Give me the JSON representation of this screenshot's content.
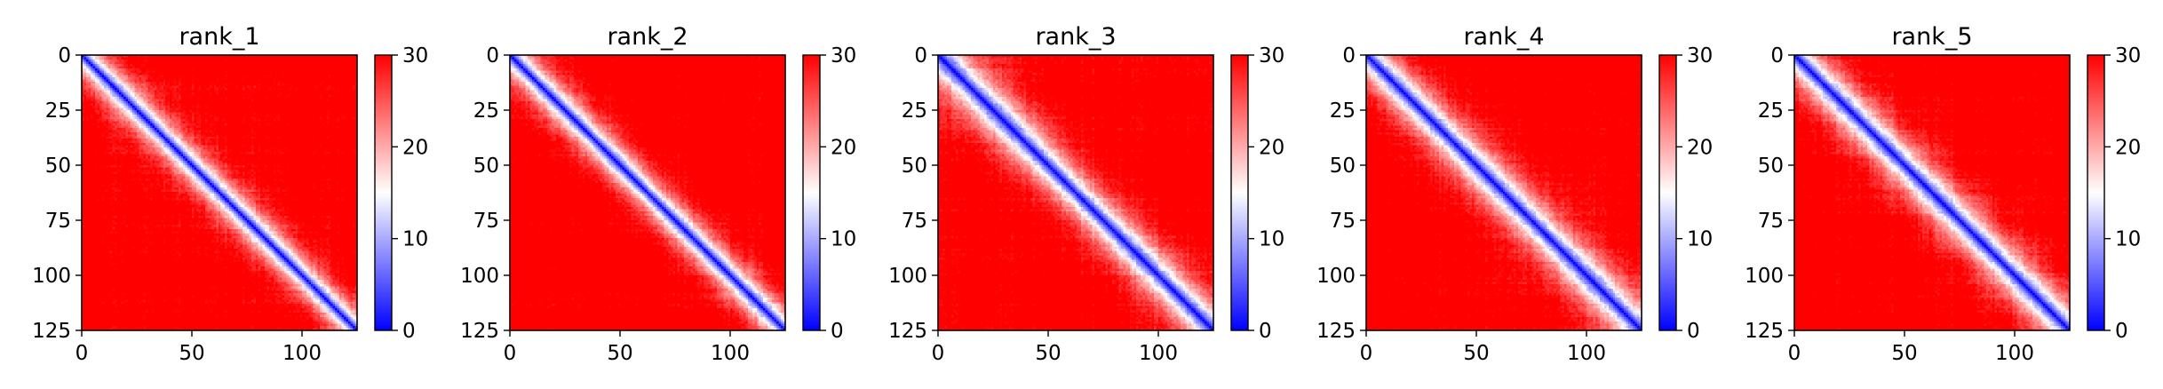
{
  "chart_data": [
    {
      "type": "heatmap",
      "title": "rank_1",
      "n": 125,
      "x_ticks": [
        0,
        50,
        100
      ],
      "y_ticks": [
        0,
        25,
        50,
        75,
        100,
        125
      ],
      "xlim": [
        0,
        125
      ],
      "ylim": [
        125,
        0
      ],
      "colormap": "bwr",
      "colorbar": {
        "range": [
          0,
          30
        ],
        "ticks": [
          0,
          10,
          20,
          30
        ]
      },
      "diagonal_value": 0,
      "typical_offdiagonal": 30,
      "pattern": "distance matrix: blue band along the main diagonal, saturating to red away from it"
    },
    {
      "type": "heatmap",
      "title": "rank_2",
      "n": 125,
      "x_ticks": [
        0,
        50,
        100
      ],
      "y_ticks": [
        0,
        25,
        50,
        75,
        100,
        125
      ],
      "xlim": [
        0,
        125
      ],
      "ylim": [
        125,
        0
      ],
      "colormap": "bwr",
      "colorbar": {
        "range": [
          0,
          30
        ],
        "ticks": [
          0,
          10,
          20,
          30
        ]
      },
      "diagonal_value": 0,
      "typical_offdiagonal": 30,
      "pattern": "distance matrix: blue band along the main diagonal, saturating to red away from it"
    },
    {
      "type": "heatmap",
      "title": "rank_3",
      "n": 125,
      "x_ticks": [
        0,
        50,
        100
      ],
      "y_ticks": [
        0,
        25,
        50,
        75,
        100,
        125
      ],
      "xlim": [
        0,
        125
      ],
      "ylim": [
        125,
        0
      ],
      "colormap": "bwr",
      "colorbar": {
        "range": [
          0,
          30
        ],
        "ticks": [
          0,
          10,
          20,
          30
        ]
      },
      "diagonal_value": 0,
      "typical_offdiagonal": 30,
      "pattern": "distance matrix: blue band along the main diagonal, saturating to red away from it"
    },
    {
      "type": "heatmap",
      "title": "rank_4",
      "n": 125,
      "x_ticks": [
        0,
        50,
        100
      ],
      "y_ticks": [
        0,
        25,
        50,
        75,
        100,
        125
      ],
      "xlim": [
        0,
        125
      ],
      "ylim": [
        125,
        0
      ],
      "colormap": "bwr",
      "colorbar": {
        "range": [
          0,
          30
        ],
        "ticks": [
          0,
          10,
          20,
          30
        ]
      },
      "diagonal_value": 0,
      "typical_offdiagonal": 30,
      "pattern": "distance matrix: blue band along the main diagonal, saturating to red away from it"
    },
    {
      "type": "heatmap",
      "title": "rank_5",
      "n": 125,
      "x_ticks": [
        0,
        50,
        100
      ],
      "y_ticks": [
        0,
        25,
        50,
        75,
        100,
        125
      ],
      "xlim": [
        0,
        125
      ],
      "ylim": [
        125,
        0
      ],
      "colormap": "bwr",
      "colorbar": {
        "range": [
          0,
          30
        ],
        "ticks": [
          0,
          10,
          20,
          30
        ]
      },
      "diagonal_value": 0,
      "typical_offdiagonal": 30,
      "pattern": "distance matrix: blue band along the main diagonal, saturating to red away from it"
    }
  ],
  "colors": {
    "low": "#0000ff",
    "mid": "#ffffff",
    "high": "#ff0000"
  }
}
